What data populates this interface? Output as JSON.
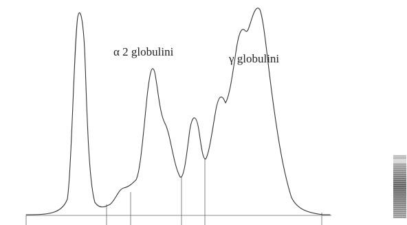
{
  "labels": {
    "alpha2": "α 2 globulini",
    "gamma": "γ globulini"
  }
}
